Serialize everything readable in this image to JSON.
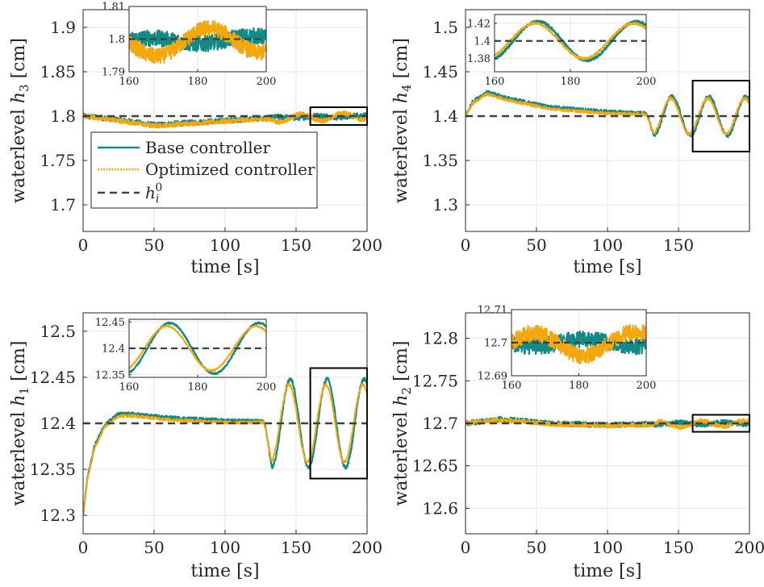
{
  "figure": {
    "description_labels": {
      "legend_base": "Base controller",
      "legend_opt": "Optimized controller",
      "legend_ref_math": "h",
      "legend_ref_sub": "i",
      "legend_ref_sup": "0"
    }
  },
  "chart_data": [
    {
      "type": "line",
      "id": "h3",
      "xlabel": "time [s]",
      "ylabel_text": "waterlevel ",
      "ylabel_math": "h",
      "ylabel_sub": "3",
      "ylabel_unit": " [cm]",
      "xlim": [
        0,
        200
      ],
      "ylim": [
        1.67,
        1.92
      ],
      "xticks": [
        0,
        50,
        100,
        150,
        200
      ],
      "yticks": [
        1.7,
        1.75,
        1.8,
        1.85,
        1.9
      ],
      "ytick_labels": [
        "1.7",
        "1.75",
        "1.8",
        "1.85",
        "1.9"
      ],
      "reference": 1.8,
      "zoom_box": {
        "x": [
          160,
          200
        ],
        "y": [
          1.79,
          1.81
        ]
      },
      "base_key": [
        [
          0,
          1.8
        ],
        [
          20,
          1.797
        ],
        [
          50,
          1.79
        ],
        [
          80,
          1.793
        ],
        [
          120,
          1.797
        ],
        [
          150,
          1.799
        ],
        [
          200,
          1.8
        ]
      ],
      "opt_key": [
        [
          0,
          1.8
        ],
        [
          20,
          1.796
        ],
        [
          50,
          1.789
        ],
        [
          80,
          1.792
        ],
        [
          120,
          1.796
        ],
        [
          150,
          1.798
        ],
        [
          200,
          1.8
        ]
      ],
      "base_osc": {
        "start": 130,
        "amp": 0.001,
        "period": 30,
        "phase": 0.4
      },
      "opt_osc": {
        "start": 130,
        "amp": 0.004,
        "period": 30,
        "phase": 3.0
      },
      "noise": {
        "base": 0.003,
        "opt": 0.0025
      },
      "legend": true,
      "inset": {
        "xlim": [
          160,
          200
        ],
        "ylim": [
          1.79,
          1.81
        ],
        "xticks": [
          160,
          180,
          200
        ],
        "yticks": [
          1.79,
          1.8,
          1.81
        ],
        "ytick_labels": [
          "1.79",
          "1.8",
          "1.81"
        ],
        "noise": {
          "base": 0.0025,
          "opt": 0.0025
        }
      }
    },
    {
      "type": "line",
      "id": "h4",
      "xlabel": "time [s]",
      "ylabel_text": "waterlevel ",
      "ylabel_math": "h",
      "ylabel_sub": "4",
      "ylabel_unit": " [cm]",
      "xlim": [
        0,
        200
      ],
      "ylim": [
        1.27,
        1.52
      ],
      "xticks": [
        0,
        50,
        100,
        150
      ],
      "yticks": [
        1.3,
        1.35,
        1.4,
        1.45,
        1.5
      ],
      "ytick_labels": [
        "1.3",
        "1.35",
        "1.4",
        "1.45",
        "1.5"
      ],
      "reference": 1.4,
      "zoom_box": {
        "x": [
          160,
          200
        ],
        "y": [
          1.36,
          1.44
        ]
      },
      "base_key": [
        [
          0,
          1.4
        ],
        [
          5,
          1.416
        ],
        [
          15,
          1.427
        ],
        [
          30,
          1.42
        ],
        [
          60,
          1.41
        ],
        [
          100,
          1.405
        ],
        [
          127,
          1.403
        ],
        [
          130,
          1.4
        ],
        [
          200,
          1.4
        ]
      ],
      "opt_key": [
        [
          0,
          1.4
        ],
        [
          5,
          1.414
        ],
        [
          15,
          1.425
        ],
        [
          30,
          1.418
        ],
        [
          60,
          1.408
        ],
        [
          100,
          1.403
        ],
        [
          127,
          1.402
        ],
        [
          130,
          1.4
        ],
        [
          200,
          1.4
        ]
      ],
      "base_osc": {
        "start": 127,
        "amp": 0.022,
        "period": 26,
        "phase": 3.4
      },
      "opt_osc": {
        "start": 127,
        "amp": 0.02,
        "period": 26,
        "phase": 3.6
      },
      "noise": {
        "base": 0.002,
        "opt": 0.0015
      },
      "legend": false,
      "inset": {
        "xlim": [
          160,
          200
        ],
        "ylim": [
          1.365,
          1.43
        ],
        "xticks": [
          160,
          180,
          200
        ],
        "yticks": [
          1.38,
          1.4,
          1.42
        ],
        "ytick_labels": [
          "1.38",
          "1.4",
          "1.42"
        ],
        "noise": {
          "base": 0.0015,
          "opt": 0.0012
        }
      }
    },
    {
      "type": "line",
      "id": "h1",
      "xlabel": "time [s]",
      "ylabel_text": "waterlevel ",
      "ylabel_math": "h",
      "ylabel_sub": "1",
      "ylabel_unit": " [cm]",
      "xlim": [
        0,
        200
      ],
      "ylim": [
        12.28,
        12.52
      ],
      "xticks": [
        0,
        50,
        100,
        150,
        200
      ],
      "yticks": [
        12.3,
        12.35,
        12.4,
        12.45,
        12.5
      ],
      "ytick_labels": [
        "12.3",
        "12.35",
        "12.4",
        "12.45",
        "12.5"
      ],
      "reference": 12.4,
      "zoom_box": {
        "x": [
          160,
          200
        ],
        "y": [
          12.34,
          12.46
        ]
      },
      "base_key": [
        [
          0,
          12.3
        ],
        [
          3,
          12.34
        ],
        [
          8,
          12.375
        ],
        [
          15,
          12.398
        ],
        [
          25,
          12.41
        ],
        [
          35,
          12.41
        ],
        [
          60,
          12.406
        ],
        [
          100,
          12.403
        ],
        [
          127,
          12.402
        ],
        [
          130,
          12.4
        ],
        [
          200,
          12.4
        ]
      ],
      "opt_key": [
        [
          0,
          12.3
        ],
        [
          3,
          12.338
        ],
        [
          8,
          12.373
        ],
        [
          15,
          12.396
        ],
        [
          25,
          12.408
        ],
        [
          35,
          12.408
        ],
        [
          60,
          12.404
        ],
        [
          100,
          12.401
        ],
        [
          127,
          12.401
        ],
        [
          130,
          12.4
        ],
        [
          200,
          12.4
        ]
      ],
      "base_osc": {
        "start": 127,
        "amp": 0.048,
        "period": 26,
        "phase": 3.3
      },
      "opt_osc": {
        "start": 127,
        "amp": 0.042,
        "period": 26,
        "phase": 3.5
      },
      "noise": {
        "base": 0.002,
        "opt": 0.0015
      },
      "legend": false,
      "inset": {
        "xlim": [
          160,
          200
        ],
        "ylim": [
          12.345,
          12.455
        ],
        "xticks": [
          160,
          180,
          200
        ],
        "yticks": [
          12.35,
          12.4,
          12.45
        ],
        "ytick_labels": [
          "12.35",
          "12.4",
          "12.45"
        ],
        "noise": {
          "base": 0.0015,
          "opt": 0.0012
        }
      }
    },
    {
      "type": "line",
      "id": "h2",
      "xlabel": "time [s]",
      "ylabel_text": "waterlevel ",
      "ylabel_math": "h",
      "ylabel_sub": "2",
      "ylabel_unit": " [cm]",
      "xlim": [
        0,
        200
      ],
      "ylim": [
        12.57,
        12.83
      ],
      "xticks": [
        0,
        50,
        100,
        150,
        200
      ],
      "yticks": [
        12.6,
        12.65,
        12.7,
        12.75,
        12.8
      ],
      "ytick_labels": [
        "12.6",
        "12.65",
        "12.7",
        "12.75",
        "12.8"
      ],
      "reference": 12.7,
      "zoom_box": {
        "x": [
          160,
          200
        ],
        "y": [
          12.69,
          12.71
        ]
      },
      "base_key": [
        [
          0,
          12.7
        ],
        [
          25,
          12.705
        ],
        [
          60,
          12.7
        ],
        [
          100,
          12.698
        ],
        [
          150,
          12.7
        ],
        [
          200,
          12.7
        ]
      ],
      "opt_key": [
        [
          0,
          12.7
        ],
        [
          25,
          12.704
        ],
        [
          60,
          12.699
        ],
        [
          100,
          12.697
        ],
        [
          150,
          12.699
        ],
        [
          200,
          12.7
        ]
      ],
      "base_osc": {
        "start": 130,
        "amp": 0.001,
        "period": 30,
        "phase": 3.3
      },
      "opt_osc": {
        "start": 130,
        "amp": 0.0035,
        "period": 30,
        "phase": 0.2
      },
      "noise": {
        "base": 0.003,
        "opt": 0.0025
      },
      "legend": false,
      "inset": {
        "xlim": [
          160,
          200
        ],
        "ylim": [
          12.69,
          12.71
        ],
        "xticks": [
          160,
          180,
          200
        ],
        "yticks": [
          12.69,
          12.7,
          12.71
        ],
        "ytick_labels": [
          "12.69",
          "12.7",
          "12.71"
        ],
        "noise": {
          "base": 0.0025,
          "opt": 0.0025
        }
      }
    }
  ],
  "colors": {
    "base": "#128a86",
    "opt": "#f5a80e",
    "ref": "#404040",
    "grid": "#e6e6e6",
    "axis": "#262626",
    "box": "#000000"
  }
}
